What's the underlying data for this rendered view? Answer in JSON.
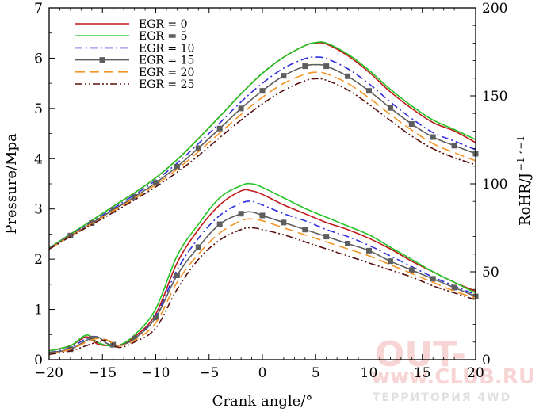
{
  "chart_data": {
    "type": "line",
    "xlabel": "Crank angle/°",
    "ylabel": "Pressure/Mpa",
    "y2label": "RoHR/J",
    "y2label_sup": "−1 ∘−1",
    "xlim": [
      -20,
      20
    ],
    "ylim": [
      0,
      7
    ],
    "y2lim": [
      0,
      200
    ],
    "x_ticks": [
      -20,
      -15,
      -10,
      -5,
      0,
      5,
      10,
      15,
      20
    ],
    "x_tick_labels": [
      "−20",
      "−15",
      "−10",
      "−5",
      "0",
      "5",
      "10",
      "15",
      "20"
    ],
    "y_ticks": [
      0,
      1,
      2,
      3,
      4,
      5,
      6,
      7
    ],
    "y2_ticks": [
      0,
      50,
      100,
      150,
      200
    ],
    "grid": false,
    "legend_position": "top-left",
    "legend": [
      "EGR = 0",
      "EGR = 5",
      "EGR = 10",
      "EGR = 15",
      "EGR = 20",
      "EGR = 25"
    ],
    "colors": [
      "#c0191c",
      "#22c422",
      "#2f2fe0",
      "#5e5e5e",
      "#f59423",
      "#5a0f0f"
    ],
    "dash": [
      "",
      "",
      "9,4,2,4",
      "",
      "12,6",
      "9,3,2,3,2,3"
    ],
    "markers": [
      false,
      false,
      false,
      true,
      false,
      false
    ],
    "x": [
      -20,
      -18,
      -16,
      -14,
      -12,
      -10,
      -8,
      -6,
      -4,
      -2,
      0,
      2,
      4,
      5,
      6,
      8,
      10,
      12,
      14,
      16,
      18,
      20
    ],
    "pressure_series": [
      {
        "name": "EGR = 0",
        "values": [
          2.22,
          2.5,
          2.77,
          3.05,
          3.32,
          3.62,
          3.98,
          4.4,
          4.84,
          5.29,
          5.7,
          6.02,
          6.25,
          6.3,
          6.28,
          6.05,
          5.72,
          5.33,
          5.0,
          4.72,
          4.55,
          4.32
        ]
      },
      {
        "name": "EGR = 5",
        "values": [
          2.22,
          2.5,
          2.77,
          3.05,
          3.32,
          3.62,
          3.98,
          4.4,
          4.84,
          5.29,
          5.7,
          6.02,
          6.25,
          6.31,
          6.3,
          6.08,
          5.76,
          5.38,
          5.05,
          4.77,
          4.58,
          4.38
        ]
      },
      {
        "name": "EGR = 10",
        "values": [
          2.21,
          2.48,
          2.74,
          3.01,
          3.28,
          3.57,
          3.91,
          4.3,
          4.71,
          5.13,
          5.5,
          5.8,
          5.99,
          6.02,
          5.99,
          5.79,
          5.49,
          5.13,
          4.8,
          4.52,
          4.35,
          4.18
        ]
      },
      {
        "name": "EGR = 15",
        "values": [
          2.21,
          2.47,
          2.72,
          2.98,
          3.24,
          3.52,
          3.84,
          4.21,
          4.6,
          5.0,
          5.35,
          5.65,
          5.84,
          5.87,
          5.84,
          5.64,
          5.35,
          5.01,
          4.69,
          4.43,
          4.26,
          4.1
        ]
      },
      {
        "name": "EGR = 20",
        "values": [
          2.2,
          2.46,
          2.71,
          2.96,
          3.21,
          3.48,
          3.79,
          4.14,
          4.51,
          4.88,
          5.22,
          5.5,
          5.68,
          5.72,
          5.69,
          5.5,
          5.21,
          4.88,
          4.57,
          4.3,
          4.12,
          3.96
        ]
      },
      {
        "name": "EGR = 25",
        "values": [
          2.2,
          2.45,
          2.69,
          2.93,
          3.18,
          3.44,
          3.73,
          4.06,
          4.42,
          4.77,
          5.09,
          5.36,
          5.55,
          5.59,
          5.56,
          5.37,
          5.08,
          4.76,
          4.45,
          4.2,
          4.02,
          3.88
        ]
      }
    ],
    "rohr_x": [
      -20,
      -18,
      -16.5,
      -15.5,
      -14.5,
      -13.5,
      -12,
      -10,
      -8,
      -6,
      -4,
      -2,
      -1,
      0,
      2,
      4,
      6,
      8,
      10,
      12,
      14,
      16,
      18,
      20
    ],
    "rohr_series": [
      {
        "name": "EGR = 0",
        "values": [
          5,
          8,
          13,
          9,
          8,
          8,
          13,
          26,
          55,
          74,
          88,
          96,
          96,
          94,
          88,
          83,
          78,
          74,
          69,
          63,
          56,
          50,
          44,
          39
        ]
      },
      {
        "name": "EGR = 5",
        "values": [
          5,
          8,
          14,
          10,
          8,
          8,
          14,
          29,
          59,
          77,
          92,
          99,
          100,
          98,
          92,
          86,
          81,
          76,
          71,
          64,
          57,
          50,
          44,
          38
        ]
      },
      {
        "name": "EGR = 10",
        "values": [
          4,
          7,
          12,
          13,
          9,
          8,
          12,
          25,
          51,
          69,
          82,
          89,
          90,
          88,
          83,
          79,
          74,
          70,
          65,
          59,
          53,
          47,
          42,
          37
        ]
      },
      {
        "name": "EGR = 15",
        "values": [
          4,
          6,
          11,
          13,
          9,
          8,
          12,
          24,
          48,
          64,
          77,
          83,
          84,
          82,
          78,
          74,
          70,
          66,
          62,
          56,
          51,
          46,
          41,
          36
        ]
      },
      {
        "name": "EGR = 20",
        "values": [
          3,
          6,
          10,
          12,
          11,
          8,
          11,
          21,
          44,
          60,
          72,
          79,
          80,
          79,
          75,
          71,
          67,
          63,
          59,
          54,
          49,
          44,
          39,
          35
        ]
      },
      {
        "name": "EGR = 25",
        "values": [
          3,
          5,
          8,
          10,
          11,
          7,
          10,
          18,
          40,
          57,
          68,
          74,
          75,
          74,
          71,
          67,
          63,
          59,
          55,
          51,
          47,
          42,
          38,
          34
        ]
      }
    ],
    "marker_x": [
      -18,
      -16,
      -14,
      -12,
      -10,
      -8,
      -6,
      -4,
      -2,
      0,
      2,
      4,
      6,
      8,
      10,
      12,
      14,
      16,
      18,
      20
    ]
  },
  "watermark": {
    "main": "OUT-",
    "domain": "www.CLUB.RU",
    "tagline": "ТЕРРИТОРИЯ 4WD"
  }
}
